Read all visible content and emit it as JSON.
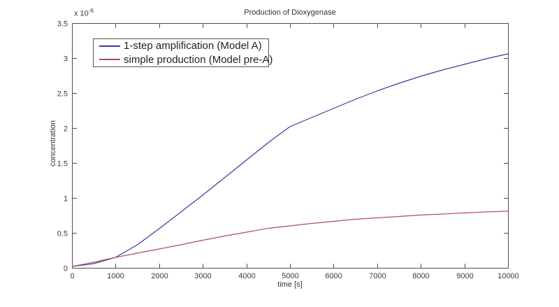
{
  "figure": {
    "title": "Production of Dioxygenase",
    "xlabel": "time [s]",
    "ylabel": "concentration",
    "exponent_base": "x 10",
    "exponent_power": "-6"
  },
  "colors": {
    "axis": "#4d4d4d",
    "text": "#3a3a3a",
    "background": "#ffffff",
    "series_blue": "#3b3b9a",
    "series_red": "#b25050"
  },
  "chart_data": {
    "type": "line",
    "title": "Production of Dioxygenase",
    "xlabel": "time [s]",
    "ylabel": "concentration",
    "y_unit_label": "x 10^-6",
    "xlim": [
      0,
      10000
    ],
    "ylim": [
      0,
      3.5
    ],
    "xticks": [
      0,
      1000,
      2000,
      3000,
      4000,
      5000,
      6000,
      7000,
      8000,
      9000,
      10000
    ],
    "yticks": [
      0,
      0.5,
      1,
      1.5,
      2,
      2.5,
      3,
      3.5
    ],
    "yticklabels": [
      "0",
      "0.5",
      "1",
      "1.5",
      "2",
      "2.5",
      "3",
      "3.5"
    ],
    "grid": false,
    "legend_position": "upper-left",
    "x": [
      0,
      500,
      1000,
      1500,
      2000,
      2500,
      3000,
      3500,
      4000,
      4500,
      5000,
      5500,
      6000,
      6500,
      7000,
      7500,
      8000,
      8500,
      9000,
      9500,
      10000
    ],
    "series": [
      {
        "name": "1-step amplification (Model A)",
        "color": "#3b3b9a",
        "values": [
          0.02,
          0.06,
          0.15,
          0.33,
          0.56,
          0.8,
          1.04,
          1.29,
          1.54,
          1.79,
          2.02,
          2.15,
          2.28,
          2.41,
          2.53,
          2.64,
          2.74,
          2.83,
          2.91,
          2.99,
          3.06
        ]
      },
      {
        "name": "simple production (Model pre-A)",
        "color": "#b25050",
        "values": [
          0.02,
          0.08,
          0.15,
          0.21,
          0.27,
          0.33,
          0.395,
          0.455,
          0.51,
          0.565,
          0.6,
          0.635,
          0.665,
          0.695,
          0.715,
          0.735,
          0.755,
          0.77,
          0.785,
          0.8,
          0.81
        ]
      }
    ]
  }
}
